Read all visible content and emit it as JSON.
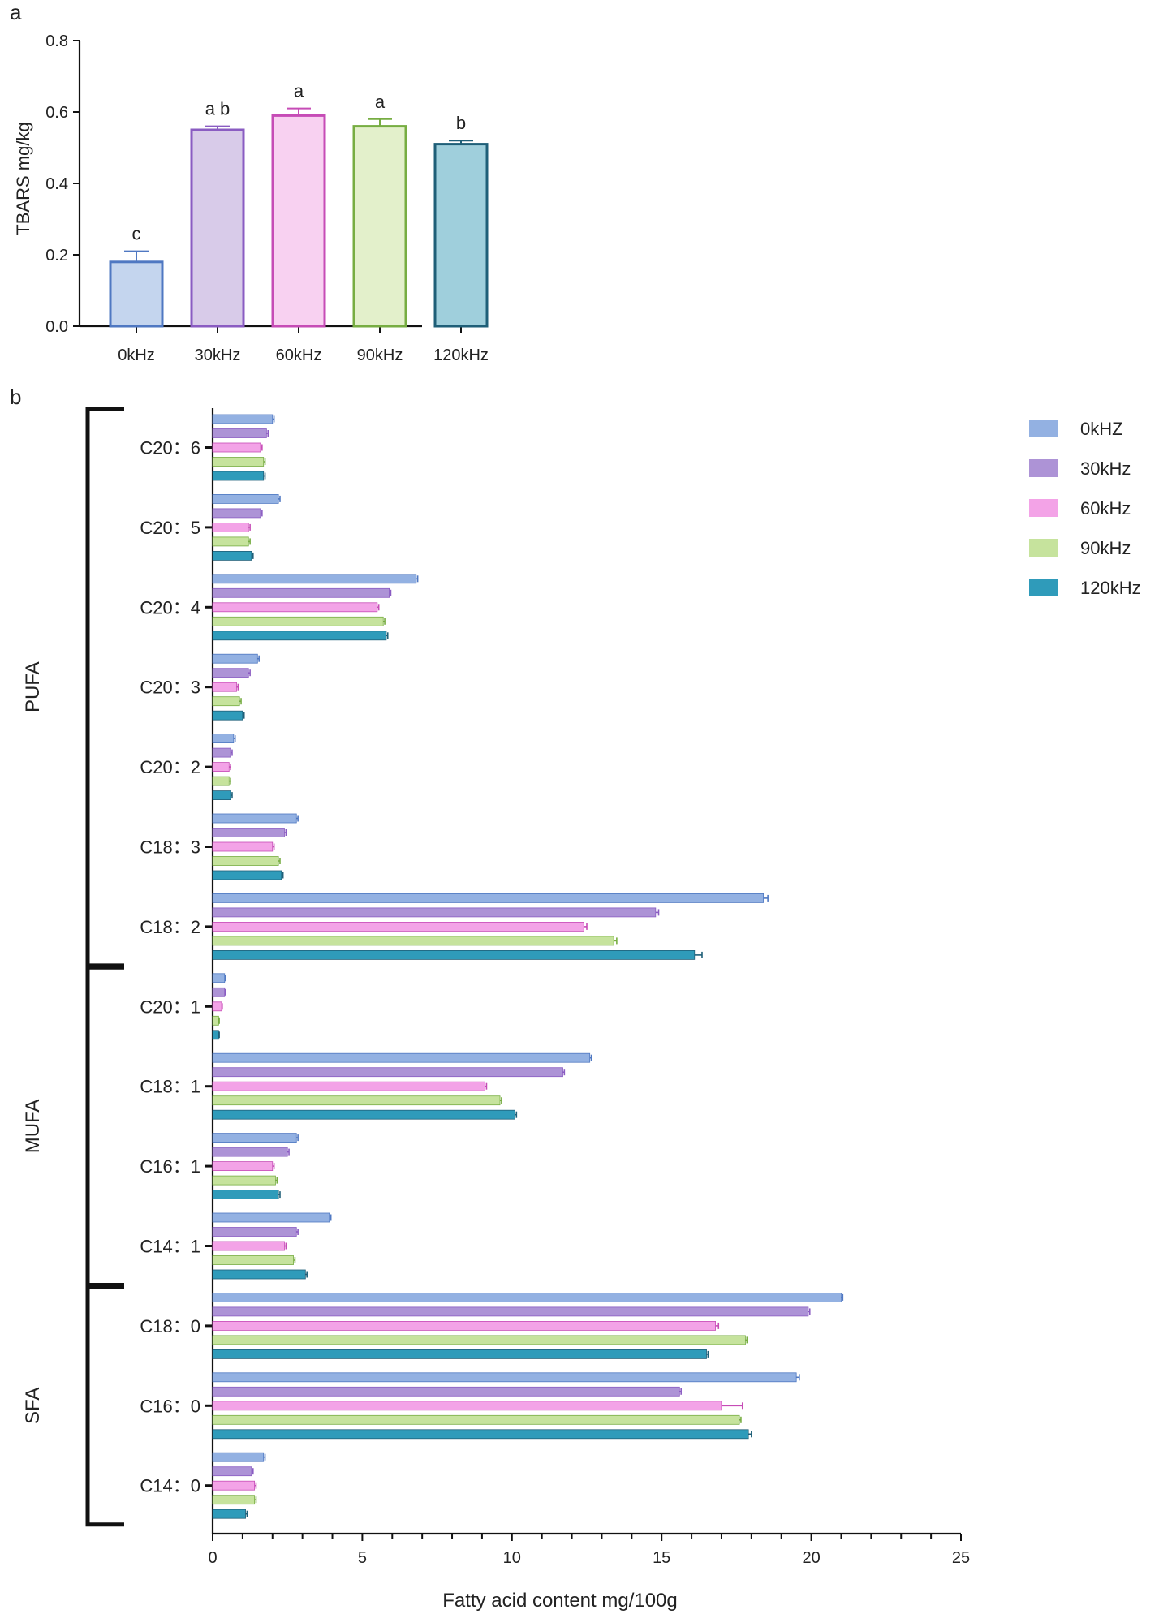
{
  "panel_a_label": "a",
  "panel_b_label": "b",
  "colors": {
    "axis": "#111111",
    "series": {
      "0kHZ": {
        "fill": "#c4d5ee",
        "stroke": "#4f78c2",
        "fill_b": "#93b1e2"
      },
      "30kHz": {
        "fill": "#d8cbe9",
        "stroke": "#8a5cc2",
        "fill_b": "#ad93d6"
      },
      "60kHz": {
        "fill": "#f8d1f1",
        "stroke": "#c64cb6",
        "fill_b": "#f3a3e7"
      },
      "90kHz": {
        "fill": "#e3f0cb",
        "stroke": "#77ad42",
        "fill_b": "#c6e39d"
      },
      "120kHz": {
        "fill": "#9fcfdc",
        "stroke": "#1f5f78",
        "fill_b": "#2f9bba"
      }
    }
  },
  "chart_data": [
    {
      "id": "tbars",
      "type": "bar",
      "title": "",
      "xlabel": "",
      "ylabel": "TBARS mg/kg",
      "ylim": [
        0,
        0.8
      ],
      "yticks": [
        "0.0",
        "0.2",
        "0.4",
        "0.6",
        "0.8"
      ],
      "ytick_values": [
        0,
        0.2,
        0.4,
        0.6,
        0.8
      ],
      "categories": [
        "0kHz",
        "30kHz",
        "60kHz",
        "90kHz",
        "120kHz"
      ],
      "series_keys": [
        "0kHZ",
        "30kHz",
        "60kHz",
        "90kHz",
        "120kHz"
      ],
      "values": [
        0.18,
        0.55,
        0.59,
        0.56,
        0.51
      ],
      "errors": [
        0.03,
        0.01,
        0.02,
        0.02,
        0.01
      ],
      "letters": [
        "c",
        "a b",
        "a",
        "a",
        "b"
      ]
    },
    {
      "id": "fatty_acids",
      "type": "bar",
      "orientation": "horizontal",
      "xlabel": "Fatty acid content mg/100g",
      "xlim": [
        0,
        25
      ],
      "xticks": [
        "0",
        "5",
        "10",
        "15",
        "20",
        "25"
      ],
      "xtick_values": [
        0,
        5,
        10,
        15,
        20,
        25
      ],
      "series": [
        "0kHZ",
        "30kHz",
        "60kHz",
        "90kHz",
        "120kHz"
      ],
      "categories": [
        "C20：6",
        "C20：5",
        "C20：4",
        "C20：3",
        "C20：2",
        "C18：3",
        "C18：2",
        "C20：1",
        "C18：1",
        "C16：1",
        "C14：1",
        "C18：0",
        "C16：0",
        "C14：0"
      ],
      "groups": [
        {
          "name": "PUFA",
          "first": 0,
          "last": 6
        },
        {
          "name": "MUFA",
          "first": 7,
          "last": 10
        },
        {
          "name": "SFA",
          "first": 11,
          "last": 13
        }
      ],
      "values": [
        [
          2.0,
          1.8,
          1.6,
          1.7,
          1.7
        ],
        [
          2.2,
          1.6,
          1.2,
          1.2,
          1.3
        ],
        [
          6.8,
          5.9,
          5.5,
          5.7,
          5.8
        ],
        [
          1.5,
          1.2,
          0.8,
          0.9,
          1.0
        ],
        [
          0.7,
          0.6,
          0.55,
          0.55,
          0.6
        ],
        [
          2.8,
          2.4,
          2.0,
          2.2,
          2.3
        ],
        [
          18.4,
          14.8,
          12.4,
          13.4,
          16.1
        ],
        [
          0.4,
          0.4,
          0.3,
          0.2,
          0.2
        ],
        [
          12.6,
          11.7,
          9.1,
          9.6,
          10.1
        ],
        [
          2.8,
          2.5,
          2.0,
          2.1,
          2.2
        ],
        [
          3.9,
          2.8,
          2.4,
          2.7,
          3.1
        ],
        [
          21.0,
          19.9,
          16.8,
          17.8,
          16.5
        ],
        [
          19.5,
          15.6,
          17.0,
          17.6,
          17.9
        ],
        [
          1.7,
          1.3,
          1.4,
          1.4,
          1.1
        ]
      ],
      "errors": [
        [
          0.05,
          0.05,
          0.05,
          0.05,
          0.05
        ],
        [
          0.05,
          0.05,
          0.05,
          0.05,
          0.05
        ],
        [
          0.05,
          0.05,
          0.05,
          0.05,
          0.05
        ],
        [
          0.05,
          0.05,
          0.05,
          0.05,
          0.05
        ],
        [
          0.05,
          0.05,
          0.05,
          0.05,
          0.05
        ],
        [
          0.05,
          0.05,
          0.05,
          0.05,
          0.05
        ],
        [
          0.15,
          0.1,
          0.1,
          0.1,
          0.25
        ],
        [
          0.02,
          0.02,
          0.02,
          0.02,
          0.02
        ],
        [
          0.05,
          0.05,
          0.05,
          0.05,
          0.05
        ],
        [
          0.05,
          0.05,
          0.05,
          0.05,
          0.05
        ],
        [
          0.05,
          0.05,
          0.05,
          0.05,
          0.05
        ],
        [
          0.05,
          0.05,
          0.1,
          0.05,
          0.05
        ],
        [
          0.1,
          0.05,
          0.7,
          0.05,
          0.1
        ],
        [
          0.05,
          0.05,
          0.05,
          0.05,
          0.05
        ]
      ],
      "legend": {
        "position": "top-right",
        "entries": [
          "0kHZ",
          "30kHz",
          "60kHz",
          "90kHz",
          "120kHz"
        ]
      }
    }
  ]
}
